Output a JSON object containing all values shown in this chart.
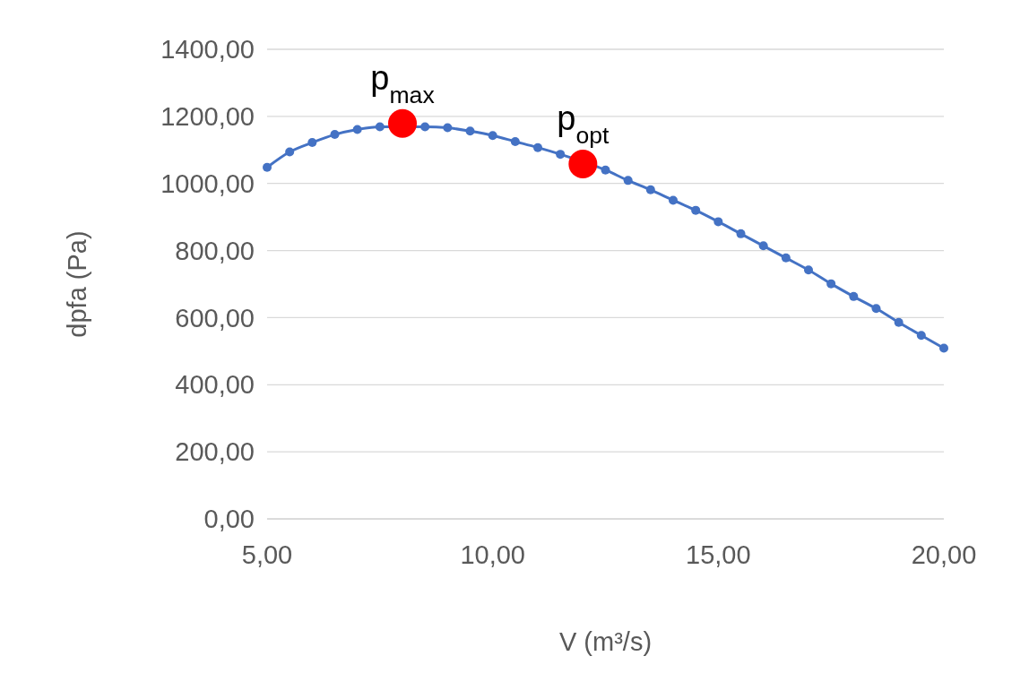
{
  "chart_data": {
    "type": "line",
    "ylabel": "dpfa (Pa)",
    "xlabel": "V (m³/s)",
    "xlim": [
      5,
      20
    ],
    "ylim": [
      0,
      1400
    ],
    "xticks": [
      {
        "value": 5,
        "label": "5,00"
      },
      {
        "value": 10,
        "label": "10,00"
      },
      {
        "value": 15,
        "label": "15,00"
      },
      {
        "value": 20,
        "label": "20,00"
      }
    ],
    "yticks": [
      {
        "value": 0,
        "label": "0,00"
      },
      {
        "value": 200,
        "label": "200,00"
      },
      {
        "value": 400,
        "label": "400,00"
      },
      {
        "value": 600,
        "label": "600,00"
      },
      {
        "value": 800,
        "label": "800,00"
      },
      {
        "value": 1000,
        "label": "1000,00"
      },
      {
        "value": 1200,
        "label": "1200,00"
      },
      {
        "value": 1400,
        "label": "1400,00"
      }
    ],
    "grid": "y",
    "marker": "circle",
    "series": [
      {
        "color": "#4472c4",
        "x": [
          5,
          5.5,
          6,
          6.5,
          7,
          7.5,
          8,
          8.5,
          9,
          9.5,
          10,
          10.5,
          11,
          11.5,
          12,
          12.5,
          13,
          13.5,
          14,
          14.5,
          15,
          15.5,
          16,
          16.5,
          17,
          17.5,
          18,
          18.5,
          19,
          19.5,
          20
        ],
        "values": [
          1048,
          1094,
          1122,
          1146,
          1161,
          1169,
          null,
          1169,
          1166,
          1156,
          1143,
          1125,
          1107,
          1087,
          null,
          1040,
          1009,
          981,
          950,
          920,
          886,
          850,
          814,
          778,
          742,
          701,
          663,
          627,
          586,
          547,
          509
        ]
      },
      {
        "type": "scatter",
        "color": "#ff0000",
        "x": [
          8,
          12
        ],
        "values": [
          1179,
          1058
        ]
      }
    ],
    "annotations": [
      {
        "text": "p$_{max}$",
        "x": 8,
        "y": 1179
      },
      {
        "text": "p$_{opt}$",
        "x": 12,
        "y": 1058
      }
    ]
  }
}
